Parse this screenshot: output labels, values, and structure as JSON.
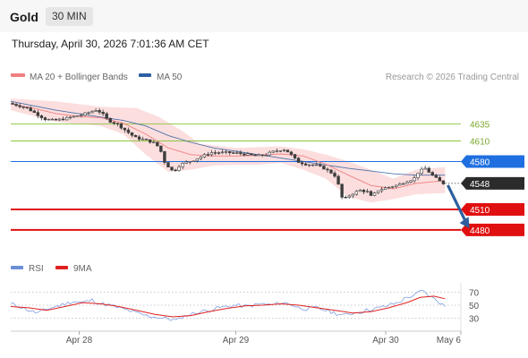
{
  "header": {
    "instrument": "Gold",
    "timeframe": "30 MIN",
    "datetime": "Thursday, April 30, 2026 7:01:36 AM CET"
  },
  "legend": {
    "ma20": {
      "label": "MA 20 + Bollinger Bands",
      "color": "#f08080"
    },
    "ma50": {
      "label": "MA 50",
      "color": "#2e5fa3"
    },
    "credit": "Research © 2026 Trading Central"
  },
  "rsi_legend": {
    "rsi": {
      "label": "RSI",
      "color": "#6b8fd8"
    },
    "ma9": {
      "label": "9MA",
      "color": "#e02020"
    }
  },
  "chart_data": [
    {
      "type": "candlestick",
      "instrument": "Gold",
      "timeframe": "30 MIN",
      "x_ticks": [
        "Apr 28",
        "Apr 29",
        "Apr 30",
        "May 6"
      ],
      "x_tick_pos": [
        0.152,
        0.5,
        0.833,
        1.0
      ],
      "ylim": [
        4455,
        4680
      ],
      "last_price": 4548,
      "levels": [
        {
          "label": "4635",
          "value": 4635,
          "kind": "resistance",
          "color": "#8cc63f"
        },
        {
          "label": "4610",
          "value": 4610,
          "kind": "resistance",
          "color": "#8cc63f"
        },
        {
          "label": "4580",
          "value": 4580,
          "kind": "pivot",
          "color": "#1f6fe0"
        },
        {
          "label": "4510",
          "value": 4510,
          "kind": "support",
          "color": "#e01010"
        },
        {
          "label": "4480",
          "value": 4480,
          "kind": "support",
          "color": "#e01010"
        }
      ],
      "price_points": [
        [
          0,
          4665
        ],
        [
          0.02,
          4662
        ],
        [
          0.04,
          4658
        ],
        [
          0.06,
          4650
        ],
        [
          0.08,
          4642
        ],
        [
          0.1,
          4640
        ],
        [
          0.12,
          4642
        ],
        [
          0.14,
          4645
        ],
        [
          0.16,
          4648
        ],
        [
          0.18,
          4652
        ],
        [
          0.195,
          4656
        ],
        [
          0.21,
          4648
        ],
        [
          0.22,
          4640
        ],
        [
          0.24,
          4635
        ],
        [
          0.26,
          4625
        ],
        [
          0.28,
          4615
        ],
        [
          0.3,
          4612
        ],
        [
          0.32,
          4608
        ],
        [
          0.335,
          4600
        ],
        [
          0.345,
          4580
        ],
        [
          0.355,
          4572
        ],
        [
          0.365,
          4565
        ],
        [
          0.37,
          4568
        ],
        [
          0.38,
          4575
        ],
        [
          0.39,
          4578
        ],
        [
          0.41,
          4582
        ],
        [
          0.43,
          4588
        ],
        [
          0.45,
          4593
        ],
        [
          0.47,
          4593
        ],
        [
          0.49,
          4593
        ],
        [
          0.51,
          4592
        ],
        [
          0.53,
          4590
        ],
        [
          0.55,
          4588
        ],
        [
          0.57,
          4590
        ],
        [
          0.59,
          4595
        ],
        [
          0.61,
          4598
        ],
        [
          0.62,
          4594
        ],
        [
          0.63,
          4588
        ],
        [
          0.64,
          4580
        ],
        [
          0.66,
          4576
        ],
        [
          0.68,
          4575
        ],
        [
          0.7,
          4570
        ],
        [
          0.72,
          4562
        ],
        [
          0.73,
          4555
        ],
        [
          0.735,
          4530
        ],
        [
          0.745,
          4525
        ],
        [
          0.76,
          4532
        ],
        [
          0.78,
          4538
        ],
        [
          0.8,
          4535
        ],
        [
          0.805,
          4528
        ],
        [
          0.82,
          4538
        ],
        [
          0.84,
          4542
        ],
        [
          0.86,
          4545
        ],
        [
          0.88,
          4550
        ],
        [
          0.9,
          4555
        ],
        [
          0.91,
          4565
        ],
        [
          0.925,
          4570
        ],
        [
          0.94,
          4560
        ],
        [
          0.955,
          4552
        ],
        [
          0.965,
          4548
        ]
      ],
      "ma50_points": [
        [
          0,
          4668
        ],
        [
          0.1,
          4655
        ],
        [
          0.2,
          4645
        ],
        [
          0.25,
          4640
        ],
        [
          0.3,
          4632
        ],
        [
          0.35,
          4618
        ],
        [
          0.4,
          4608
        ],
        [
          0.45,
          4600
        ],
        [
          0.5,
          4595
        ],
        [
          0.55,
          4590
        ],
        [
          0.6,
          4585
        ],
        [
          0.65,
          4580
        ],
        [
          0.7,
          4575
        ],
        [
          0.75,
          4570
        ],
        [
          0.8,
          4566
        ],
        [
          0.85,
          4562
        ],
        [
          0.9,
          4560
        ],
        [
          0.965,
          4560
        ]
      ],
      "ma20_points": [
        [
          0,
          4664
        ],
        [
          0.05,
          4658
        ],
        [
          0.1,
          4650
        ],
        [
          0.15,
          4646
        ],
        [
          0.2,
          4644
        ],
        [
          0.25,
          4636
        ],
        [
          0.3,
          4620
        ],
        [
          0.35,
          4600
        ],
        [
          0.4,
          4590
        ],
        [
          0.45,
          4588
        ],
        [
          0.5,
          4588
        ],
        [
          0.55,
          4589
        ],
        [
          0.6,
          4591
        ],
        [
          0.65,
          4588
        ],
        [
          0.7,
          4576
        ],
        [
          0.75,
          4560
        ],
        [
          0.8,
          4545
        ],
        [
          0.85,
          4540
        ],
        [
          0.9,
          4548
        ],
        [
          0.965,
          4552
        ]
      ],
      "bb_upper": [
        [
          0,
          4672
        ],
        [
          0.1,
          4668
        ],
        [
          0.2,
          4660
        ],
        [
          0.28,
          4658
        ],
        [
          0.33,
          4645
        ],
        [
          0.38,
          4625
        ],
        [
          0.42,
          4606
        ],
        [
          0.5,
          4600
        ],
        [
          0.6,
          4602
        ],
        [
          0.65,
          4598
        ],
        [
          0.7,
          4590
        ],
        [
          0.75,
          4580
        ],
        [
          0.8,
          4568
        ],
        [
          0.85,
          4555
        ],
        [
          0.9,
          4568
        ],
        [
          0.965,
          4572
        ]
      ],
      "bb_lower": [
        [
          0,
          4655
        ],
        [
          0.1,
          4638
        ],
        [
          0.2,
          4632
        ],
        [
          0.25,
          4620
        ],
        [
          0.3,
          4590
        ],
        [
          0.35,
          4565
        ],
        [
          0.4,
          4568
        ],
        [
          0.45,
          4574
        ],
        [
          0.5,
          4575
        ],
        [
          0.55,
          4575
        ],
        [
          0.6,
          4578
        ],
        [
          0.65,
          4568
        ],
        [
          0.7,
          4555
        ],
        [
          0.75,
          4528
        ],
        [
          0.8,
          4520
        ],
        [
          0.85,
          4525
        ],
        [
          0.9,
          4532
        ],
        [
          0.965,
          4534
        ]
      ],
      "forecast_arrow": {
        "from": [
          0.965,
          4548
        ],
        "to": [
          1.015,
          4485
        ]
      }
    },
    {
      "type": "line",
      "name": "RSI",
      "y_ticks": [
        70,
        50,
        30
      ],
      "ylim": [
        10,
        90
      ],
      "rsi_points": [
        [
          0,
          52
        ],
        [
          0.02,
          48
        ],
        [
          0.04,
          42
        ],
        [
          0.06,
          38
        ],
        [
          0.08,
          44
        ],
        [
          0.1,
          48
        ],
        [
          0.12,
          52
        ],
        [
          0.14,
          56
        ],
        [
          0.16,
          54
        ],
        [
          0.18,
          58
        ],
        [
          0.2,
          52
        ],
        [
          0.22,
          50
        ],
        [
          0.24,
          46
        ],
        [
          0.26,
          42
        ],
        [
          0.28,
          38
        ],
        [
          0.3,
          34
        ],
        [
          0.32,
          32
        ],
        [
          0.34,
          30
        ],
        [
          0.36,
          28
        ],
        [
          0.37,
          26
        ],
        [
          0.38,
          32
        ],
        [
          0.4,
          36
        ],
        [
          0.42,
          40
        ],
        [
          0.44,
          42
        ],
        [
          0.46,
          46
        ],
        [
          0.48,
          48
        ],
        [
          0.5,
          50
        ],
        [
          0.52,
          48
        ],
        [
          0.54,
          50
        ],
        [
          0.56,
          52
        ],
        [
          0.58,
          50
        ],
        [
          0.6,
          54
        ],
        [
          0.62,
          52
        ],
        [
          0.64,
          46
        ],
        [
          0.66,
          44
        ],
        [
          0.68,
          46
        ],
        [
          0.7,
          42
        ],
        [
          0.72,
          38
        ],
        [
          0.74,
          34
        ],
        [
          0.76,
          38
        ],
        [
          0.78,
          40
        ],
        [
          0.8,
          44
        ],
        [
          0.82,
          46
        ],
        [
          0.84,
          50
        ],
        [
          0.86,
          54
        ],
        [
          0.88,
          62
        ],
        [
          0.9,
          66
        ],
        [
          0.91,
          72
        ],
        [
          0.92,
          70
        ],
        [
          0.93,
          64
        ],
        [
          0.945,
          58
        ],
        [
          0.965,
          48
        ]
      ],
      "ma9_points": [
        [
          0,
          48
        ],
        [
          0.04,
          46
        ],
        [
          0.08,
          42
        ],
        [
          0.12,
          48
        ],
        [
          0.16,
          54
        ],
        [
          0.2,
          52
        ],
        [
          0.24,
          48
        ],
        [
          0.28,
          42
        ],
        [
          0.32,
          36
        ],
        [
          0.36,
          32
        ],
        [
          0.4,
          34
        ],
        [
          0.44,
          40
        ],
        [
          0.48,
          45
        ],
        [
          0.52,
          49
        ],
        [
          0.56,
          50
        ],
        [
          0.6,
          52
        ],
        [
          0.64,
          50
        ],
        [
          0.68,
          46
        ],
        [
          0.72,
          42
        ],
        [
          0.76,
          38
        ],
        [
          0.8,
          40
        ],
        [
          0.84,
          46
        ],
        [
          0.88,
          54
        ],
        [
          0.91,
          62
        ],
        [
          0.94,
          64
        ],
        [
          0.965,
          60
        ]
      ]
    }
  ]
}
